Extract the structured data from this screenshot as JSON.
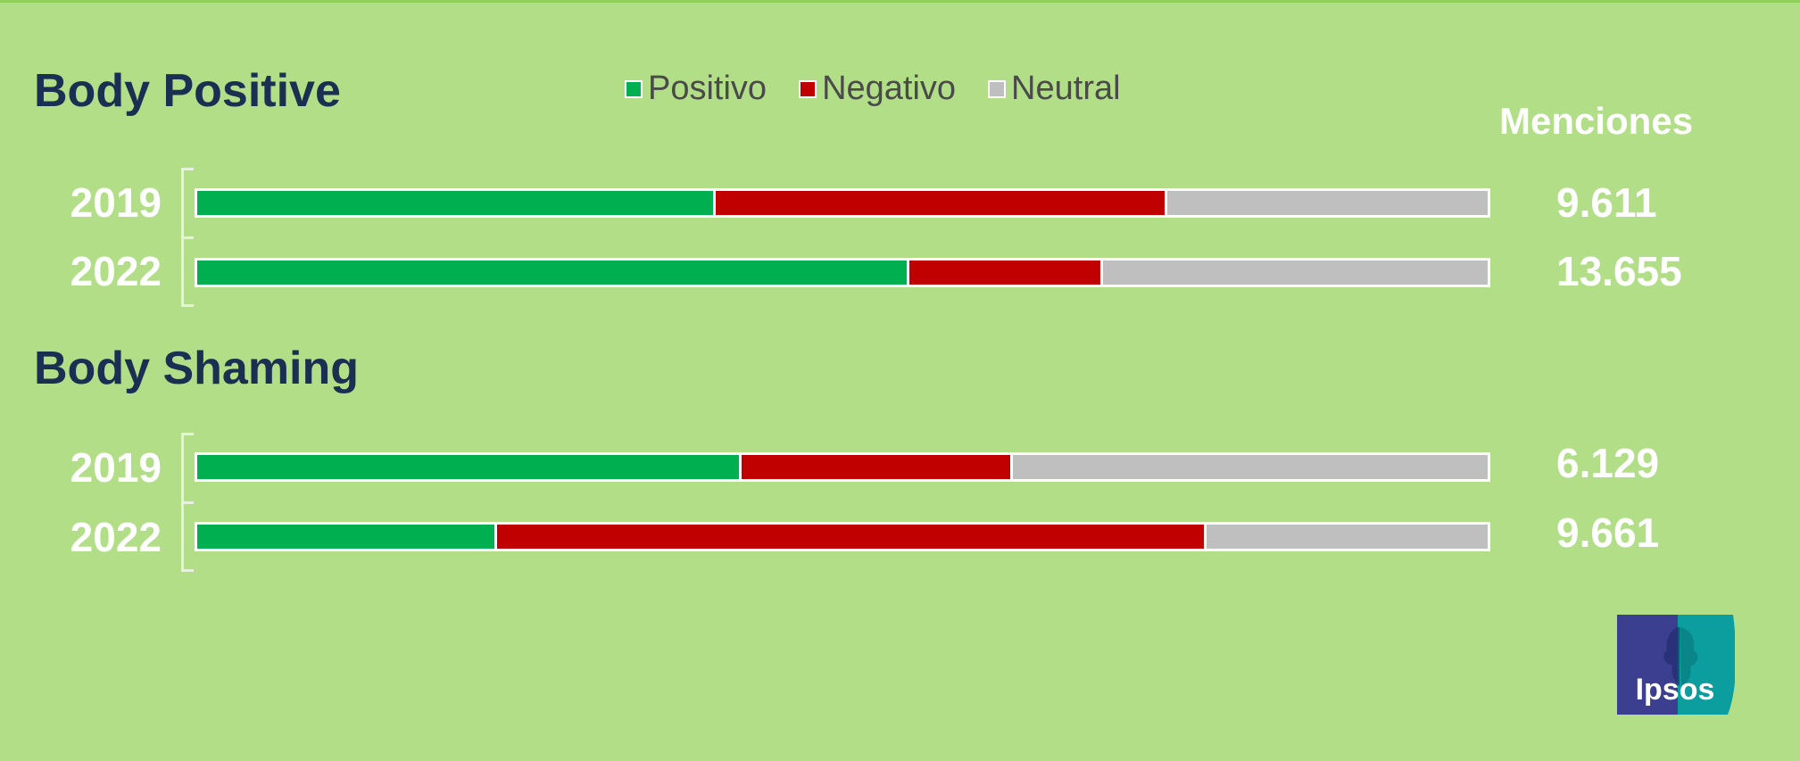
{
  "chart_data": {
    "type": "bar",
    "orientation": "horizontal",
    "stacked": "100%",
    "legend": {
      "placement": "top",
      "entries": [
        {
          "name": "Positivo",
          "color": "#00b050"
        },
        {
          "name": "Negativo",
          "color": "#c00000"
        },
        {
          "name": "Neutral",
          "color": "#bfbfbf"
        }
      ]
    },
    "mentions_header": "Menciones",
    "groups": [
      {
        "title": "Body Positive",
        "rows": [
          {
            "year": "2019",
            "positivo": 40,
            "negativo": 35,
            "neutral": 25,
            "mentions": "9.611"
          },
          {
            "year": "2022",
            "positivo": 55,
            "negativo": 15,
            "neutral": 30,
            "mentions": "13.655"
          }
        ]
      },
      {
        "title": "Body Shaming",
        "rows": [
          {
            "year": "2019",
            "positivo": 42,
            "negativo": 21,
            "neutral": 37,
            "mentions": "6.129"
          },
          {
            "year": "2022",
            "positivo": 23,
            "negativo": 55,
            "neutral": 22,
            "mentions": "9.661"
          }
        ]
      }
    ]
  },
  "logo": {
    "text": "Ipsos",
    "colors": {
      "left": "#3c3f8f",
      "right": "#0c9d9e"
    }
  }
}
